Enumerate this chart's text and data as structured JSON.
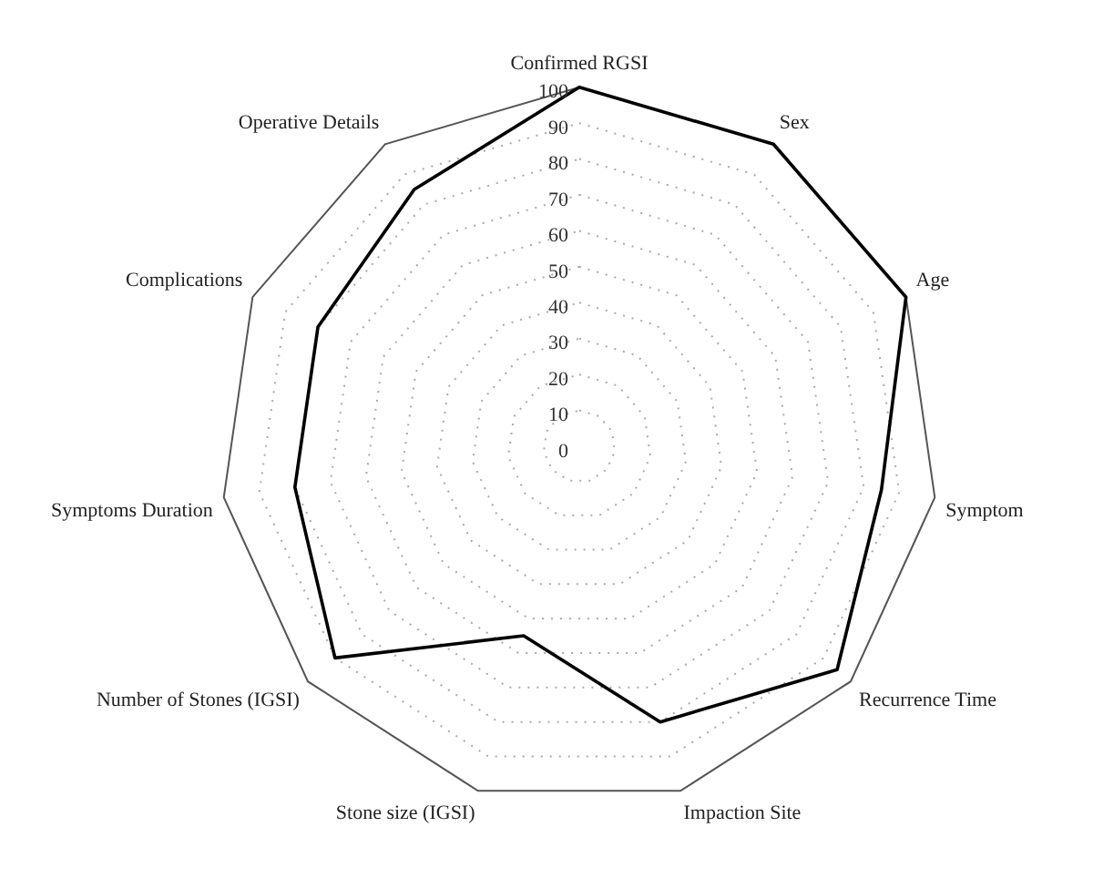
{
  "chart_data": {
    "type": "radar",
    "categories": [
      "Confirmed RGSI",
      "Sex",
      "Age",
      "Symptom",
      "Recurrence Time",
      "Impaction Site",
      "Stone size (IGSI)",
      "Number of Stones (IGSI)",
      "Symptoms Duration",
      "Complications",
      "Operative Details"
    ],
    "series": [
      {
        "color": "#000000",
        "values": [
          100,
          100,
          100,
          85,
          95,
          80,
          55,
          90,
          80,
          80,
          85
        ]
      }
    ],
    "ylim": [
      0,
      100
    ],
    "yticks": [
      0,
      10,
      20,
      30,
      40,
      50,
      60,
      70,
      80,
      90,
      100
    ],
    "grid": true
  }
}
